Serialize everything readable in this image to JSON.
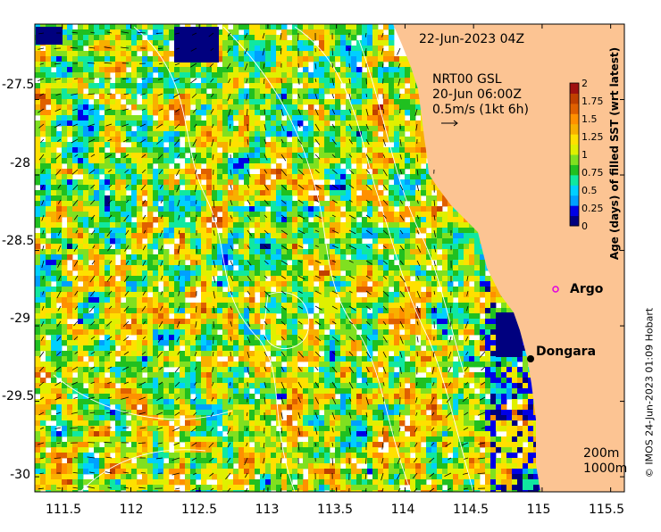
{
  "map": {
    "date_stamp": "22-Jun-2023 04Z",
    "current_source": "NRT00 GSL",
    "current_time": "20-Jun 06:00Z",
    "current_scale": "0.5m/s (1kt 6h)",
    "contour_labels": [
      "200m",
      "1000m"
    ],
    "credit": "© IMOS 24-Jun-2023 01:09 Hobart",
    "land_color": "#fcc493",
    "places": [
      {
        "name": "Dongara",
        "lon": 114.92,
        "lat": -29.25
      },
      {
        "name": "Argo",
        "lon": 115.07,
        "lat": -28.84
      }
    ]
  },
  "axes": {
    "x_ticks": [
      "111.5",
      "112",
      "112.5",
      "113",
      "113.5",
      "114",
      "114.5",
      "115",
      "115.5"
    ],
    "y_ticks": [
      "-27.5",
      "-28",
      "-28.5",
      "-29",
      "-29.5",
      "-30"
    ],
    "x_range": [
      111.3,
      115.6
    ],
    "y_range": [
      -30.1,
      -27.0
    ]
  },
  "colorbar": {
    "label": "Age (days) of filled SST (wrt latest)",
    "ticks": [
      "2",
      "1.75",
      "1.5",
      "1.25",
      "1",
      "0.75",
      "0.5",
      "0.25",
      "0"
    ],
    "range": [
      0,
      2
    ],
    "colors": [
      "#00007f",
      "#0000e6",
      "#00a0ff",
      "#00d0ff",
      "#10e8a0",
      "#20c020",
      "#80e020",
      "#e0f000",
      "#ffe000",
      "#f8b000",
      "#ff9000",
      "#e06000",
      "#c04000",
      "#a01010"
    ]
  }
}
